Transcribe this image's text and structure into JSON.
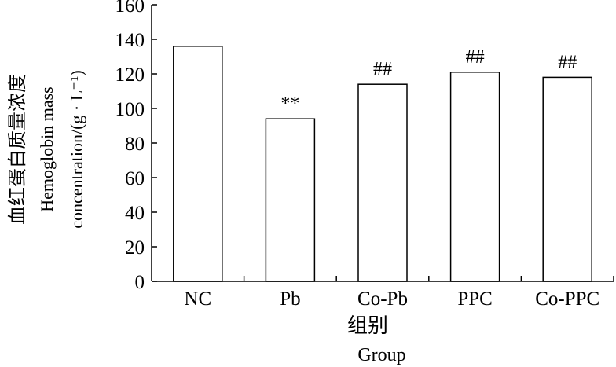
{
  "chart_data": {
    "type": "bar",
    "categories": [
      "NC",
      "Pb",
      "Co-Pb",
      "PPC",
      "Co-PPC"
    ],
    "values": [
      136,
      94,
      114,
      121,
      118
    ],
    "annotations": [
      "",
      "**",
      "##",
      "##",
      "##"
    ],
    "ylim": [
      0,
      160
    ],
    "yticks": [
      0,
      20,
      40,
      60,
      80,
      100,
      120,
      140,
      160
    ],
    "xlabel_cn": "组别",
    "xlabel_en": "Group",
    "ylabel_cn": "血红蛋白质量浓度",
    "ylabel_en_1": "Hemoglobin mass",
    "ylabel_en_2": "concentration/(g · L⁻¹)",
    "grid": false,
    "bar_fill": "#ffffff",
    "bar_stroke": "#000000"
  }
}
